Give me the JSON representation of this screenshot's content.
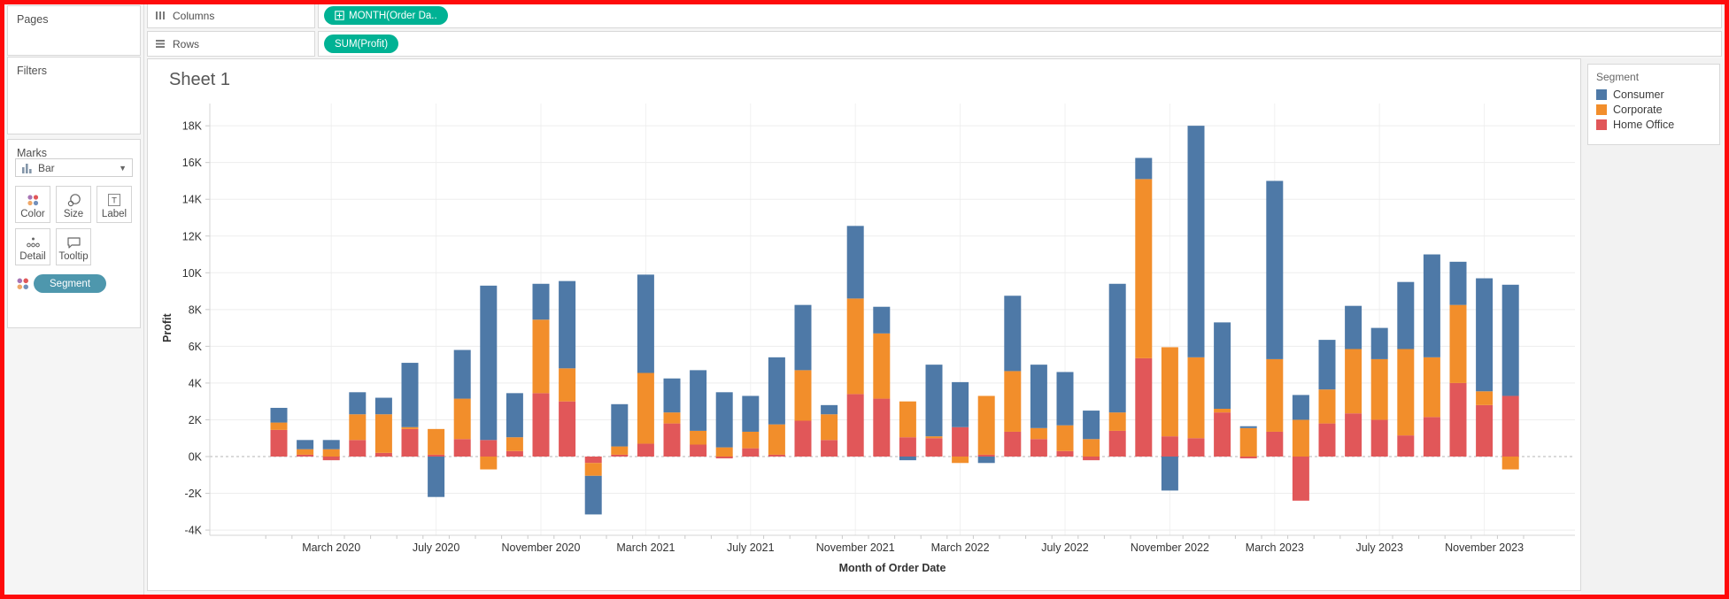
{
  "sidebar": {
    "pages_label": "Pages",
    "filters_label": "Filters",
    "marks": {
      "label": "Marks",
      "mark_type": "Bar",
      "buttons": [
        {
          "label": "Color"
        },
        {
          "label": "Size"
        },
        {
          "label": "Label"
        },
        {
          "label": "Detail"
        },
        {
          "label": "Tooltip"
        }
      ],
      "color_pill": "Segment"
    }
  },
  "shelves": {
    "columns_label": "Columns",
    "rows_label": "Rows",
    "columns_pills": [
      "MONTH(Order Da.."
    ],
    "rows_pills": [
      "SUM(Profit)"
    ]
  },
  "sheet": {
    "title": "Sheet 1"
  },
  "legend": {
    "title": "Segment",
    "items": [
      {
        "label": "Consumer",
        "color": "#4e79a7"
      },
      {
        "label": "Corporate",
        "color": "#f28e2b"
      },
      {
        "label": "Home Office",
        "color": "#e15759"
      }
    ]
  },
  "colors": {
    "pill_green": "#00b294",
    "pill_teal": "#4e97ad",
    "gridline": "#ededed",
    "zero_line": "#b5b5b5",
    "axis_line": "#d4d4d4",
    "tick": "#c9c9c9",
    "axis_text": "#333333"
  },
  "chart_data": {
    "type": "bar",
    "stacked": true,
    "title": "Sheet 1",
    "xlabel": "Month of Order Date",
    "ylabel": "Profit",
    "ylim": [
      -4000,
      18000
    ],
    "ytick_step": 2000,
    "ytick_labels": [
      "-4K",
      "-2K",
      "0K",
      "2K",
      "4K",
      "6K",
      "8K",
      "10K",
      "12K",
      "14K",
      "16K",
      "18K"
    ],
    "xtick_shown": [
      "March 2020",
      "July 2020",
      "November 2020",
      "March 2021",
      "July 2021",
      "November 2021",
      "March 2022",
      "July 2022",
      "November 2022",
      "March 2023",
      "July 2023",
      "November 2023"
    ],
    "categories": [
      "January 2020",
      "February 2020",
      "March 2020",
      "April 2020",
      "May 2020",
      "June 2020",
      "July 2020",
      "August 2020",
      "September 2020",
      "October 2020",
      "November 2020",
      "December 2020",
      "January 2021",
      "February 2021",
      "March 2021",
      "April 2021",
      "May 2021",
      "June 2021",
      "July 2021",
      "August 2021",
      "September 2021",
      "October 2021",
      "November 2021",
      "December 2021",
      "January 2022",
      "February 2022",
      "March 2022",
      "April 2022",
      "May 2022",
      "June 2022",
      "July 2022",
      "August 2022",
      "September 2022",
      "October 2022",
      "November 2022",
      "December 2022",
      "January 2023",
      "February 2023",
      "March 2023",
      "April 2023",
      "May 2023",
      "June 2023",
      "July 2023",
      "August 2023",
      "September 2023",
      "October 2023",
      "November 2023",
      "December 2023"
    ],
    "series": [
      {
        "name": "Home Office",
        "color": "#e15759",
        "values": [
          1450,
          100,
          -200,
          900,
          200,
          1500,
          100,
          950,
          900,
          300,
          3450,
          3000,
          -350,
          100,
          700,
          1800,
          650,
          -100,
          450,
          100,
          1950,
          900,
          3400,
          3150,
          1050,
          1000,
          1600,
          100,
          1350,
          950,
          300,
          -200,
          1400,
          5350,
          1100,
          1000,
          2400,
          -100,
          1350,
          -2400,
          1800,
          2350,
          2000,
          1150,
          2150,
          4000,
          2800,
          3300
        ]
      },
      {
        "name": "Corporate",
        "color": "#f28e2b",
        "values": [
          400,
          300,
          400,
          1400,
          2100,
          100,
          1400,
          2200,
          -700,
          750,
          4000,
          1800,
          -700,
          450,
          3850,
          600,
          750,
          500,
          900,
          1650,
          2750,
          1400,
          5200,
          3550,
          1950,
          100,
          -350,
          3200,
          3300,
          600,
          1400,
          950,
          1000,
          9750,
          4850,
          4400,
          200,
          1550,
          3950,
          2000,
          1850,
          3500,
          3300,
          4700,
          3250,
          4250,
          750,
          -700
        ]
      },
      {
        "name": "Consumer",
        "color": "#4e79a7",
        "values": [
          800,
          500,
          500,
          1200,
          900,
          3500,
          -2200,
          2650,
          8400,
          2400,
          1950,
          4750,
          -2100,
          2300,
          5350,
          1850,
          3300,
          3000,
          1950,
          3650,
          3550,
          500,
          3950,
          1450,
          -200,
          3900,
          2450,
          -350,
          4100,
          3450,
          2900,
          1550,
          7000,
          1150,
          -1850,
          12600,
          4700,
          100,
          9700,
          1350,
          2700,
          2350,
          1700,
          3650,
          5600,
          2350,
          6150,
          6050
        ]
      }
    ],
    "legend_position": "right",
    "grid": true
  }
}
